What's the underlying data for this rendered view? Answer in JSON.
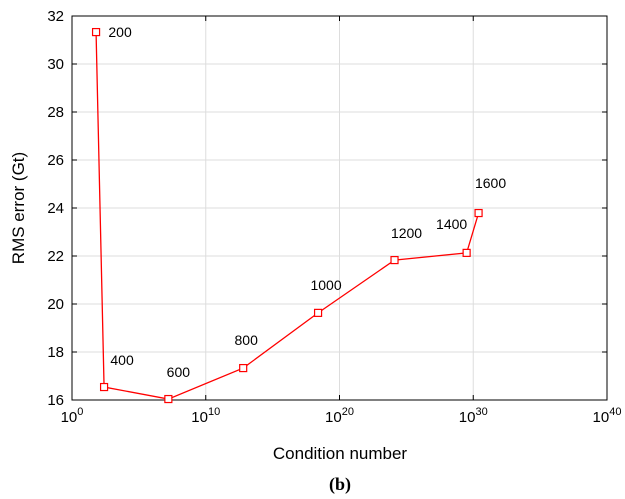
{
  "chart_data": {
    "type": "line",
    "x_label": "Condition number",
    "y_label": "RMS error (Gt)",
    "caption": "(b)",
    "x": [
      63,
      250,
      16000000,
      6300000000000.0,
      2.5e+18,
      1.3e+24,
      3.2e+29,
      2.5e+30
    ],
    "series": [
      {
        "color": "#ff0000",
        "values": [
          31.33,
          16.54,
          16.04,
          17.33,
          19.63,
          21.83,
          22.13,
          23.79
        ],
        "point_labels": [
          "200",
          "400",
          "600",
          "800",
          "1000",
          "1200",
          "1400",
          "1600"
        ]
      }
    ],
    "xscale": "log",
    "xlim": [
      1,
      1e+40
    ],
    "xticks": [
      {
        "value": 1,
        "label": "10^0"
      },
      {
        "value": 10000000000.0,
        "label": "10^10"
      },
      {
        "value": 1e+20,
        "label": "10^20"
      },
      {
        "value": 1e+30,
        "label": "10^30"
      },
      {
        "value": 1e+40,
        "label": "10^40"
      }
    ],
    "ylim": [
      16,
      32
    ],
    "yticks": [
      16,
      18,
      20,
      22,
      24,
      26,
      28,
      30,
      32
    ],
    "grid": true
  }
}
